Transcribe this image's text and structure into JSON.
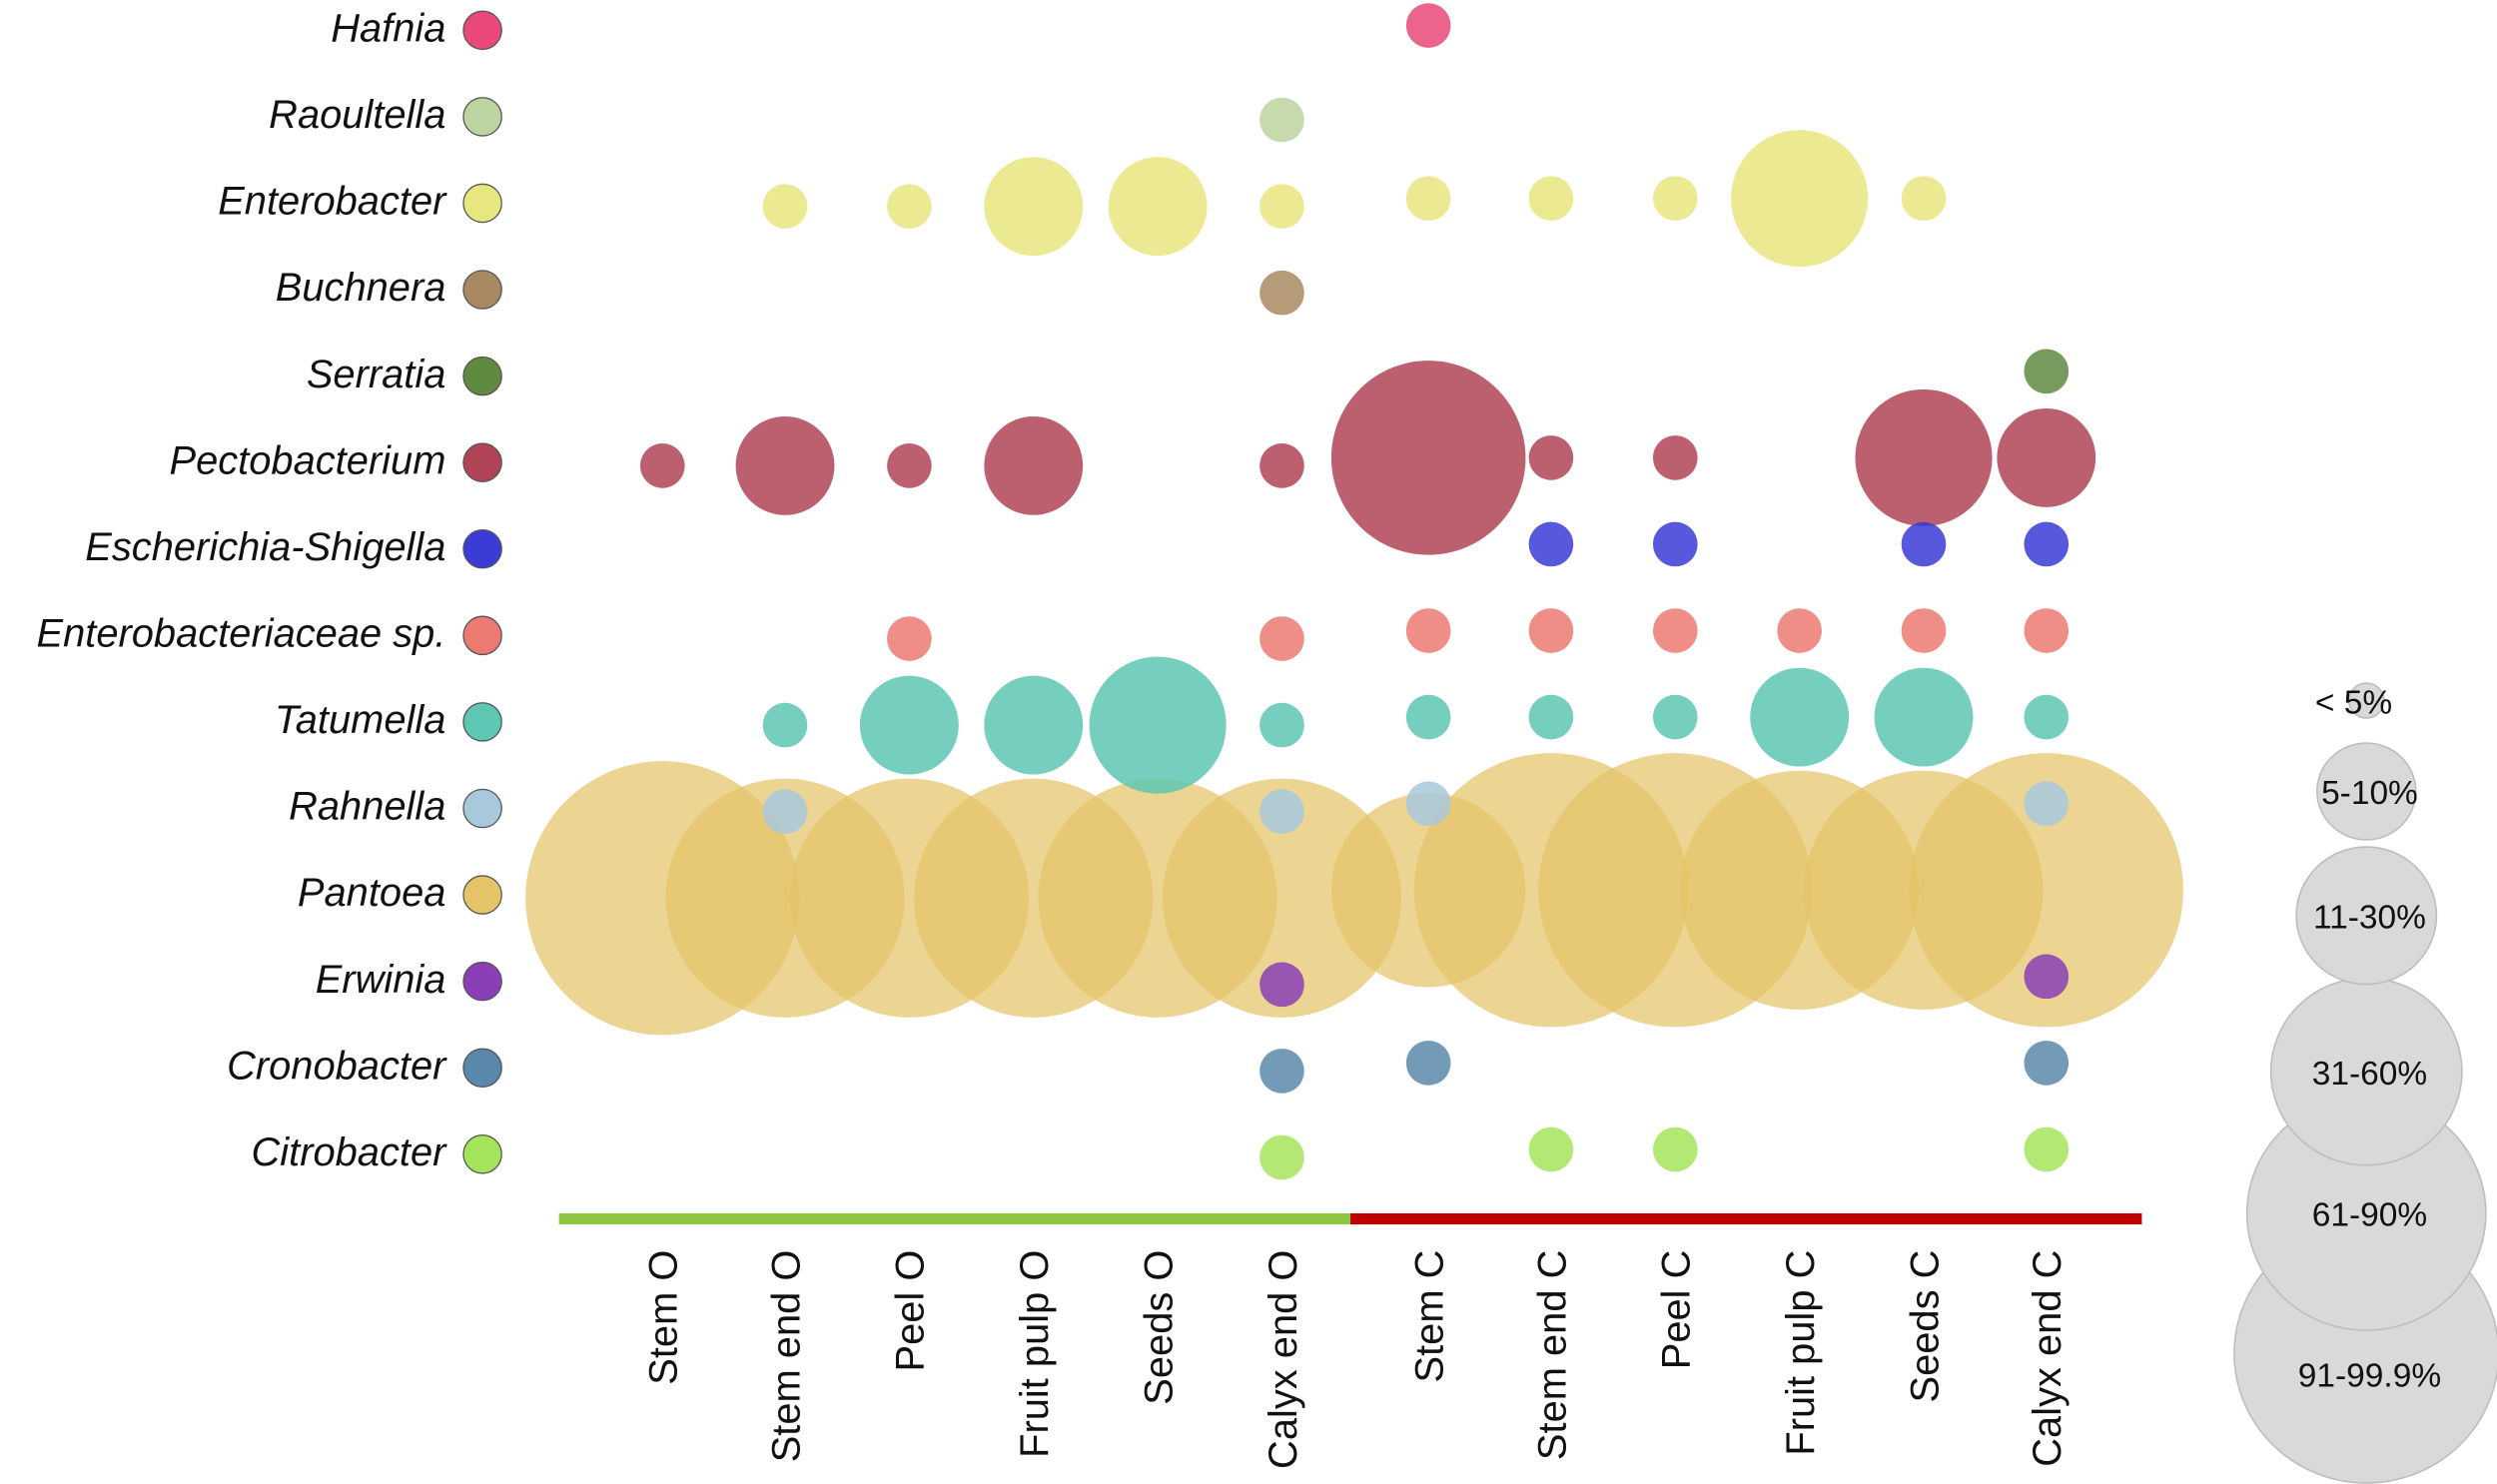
{
  "chart_data": {
    "type": "bubble",
    "title": "",
    "size_classes": [
      "< 5%",
      "5-10%",
      "11-30%",
      "31-60%",
      "61-90%",
      "91-99.9%"
    ],
    "categories": [
      "Stem O",
      "Stem end O",
      "Peel O",
      "Fruit pulp O",
      "Seeds O",
      "Calyx end O",
      "Stem C",
      "Stem end C",
      "Peel C",
      "Fruit pulp C",
      "Seeds C",
      "Calyx end C"
    ],
    "groups": [
      {
        "name": "O",
        "color": "#8cc63f",
        "categories": [
          "Stem O",
          "Stem end O",
          "Peel O",
          "Fruit pulp O",
          "Seeds O",
          "Calyx end O"
        ]
      },
      {
        "name": "C",
        "color": "#c00000",
        "categories": [
          "Stem C",
          "Stem end C",
          "Peel C",
          "Fruit pulp C",
          "Seeds C",
          "Calyx end C"
        ]
      }
    ],
    "series": [
      {
        "name": "Hafnia",
        "color": "#e8497a",
        "size_class": [
          null,
          null,
          null,
          null,
          null,
          null,
          0,
          null,
          null,
          null,
          null,
          null
        ]
      },
      {
        "name": "Raoultella",
        "color": "#bcd4a0",
        "size_class": [
          null,
          null,
          null,
          null,
          null,
          0,
          null,
          null,
          null,
          null,
          null,
          null
        ]
      },
      {
        "name": "Enterobacter",
        "color": "#e8e67f",
        "size_class": [
          null,
          0,
          0,
          1,
          1,
          0,
          0,
          0,
          0,
          2,
          0,
          null
        ]
      },
      {
        "name": "Buchnera",
        "color": "#a88960",
        "size_class": [
          null,
          null,
          null,
          null,
          null,
          0,
          null,
          null,
          null,
          null,
          null,
          null
        ]
      },
      {
        "name": "Serratia",
        "color": "#5f8a3f",
        "size_class": [
          null,
          null,
          null,
          null,
          null,
          null,
          null,
          null,
          null,
          null,
          null,
          0
        ]
      },
      {
        "name": "Pectobacterium",
        "color": "#b04456",
        "size_class": [
          0,
          1,
          0,
          1,
          null,
          0,
          3,
          0,
          0,
          null,
          2,
          1
        ]
      },
      {
        "name": "Escherichia-Shigella",
        "color": "#3b3bd6",
        "size_class": [
          null,
          null,
          null,
          null,
          null,
          null,
          null,
          0,
          0,
          null,
          0,
          0
        ]
      },
      {
        "name": "Enterobacteriaceae sp.",
        "color": "#ec7a72",
        "size_class": [
          null,
          null,
          0,
          null,
          null,
          0,
          0,
          0,
          0,
          0,
          0,
          0
        ]
      },
      {
        "name": "Tatumella",
        "color": "#5ec7b3",
        "size_class": [
          null,
          0,
          1,
          1,
          2,
          0,
          0,
          0,
          0,
          1,
          1,
          0
        ]
      },
      {
        "name": "Rahnella",
        "color": "#a8c8dc",
        "size_class": [
          null,
          0,
          null,
          null,
          null,
          0,
          0,
          null,
          null,
          null,
          null,
          0
        ]
      },
      {
        "name": "Pantoea",
        "color": "#e5c468",
        "size_class": [
          5,
          4,
          4,
          4,
          4,
          4,
          3,
          5,
          5,
          4,
          4,
          5
        ]
      },
      {
        "name": "Erwinia",
        "color": "#8a3fb6",
        "size_class": [
          null,
          null,
          null,
          null,
          null,
          0,
          null,
          null,
          null,
          null,
          null,
          0
        ]
      },
      {
        "name": "Cronobacter",
        "color": "#5a88aa",
        "size_class": [
          null,
          null,
          null,
          null,
          null,
          0,
          0,
          null,
          null,
          null,
          null,
          0
        ]
      },
      {
        "name": "Citrobacter",
        "color": "#a4e45a",
        "size_class": [
          null,
          null,
          null,
          null,
          null,
          0,
          null,
          0,
          0,
          null,
          null,
          0
        ]
      }
    ]
  }
}
